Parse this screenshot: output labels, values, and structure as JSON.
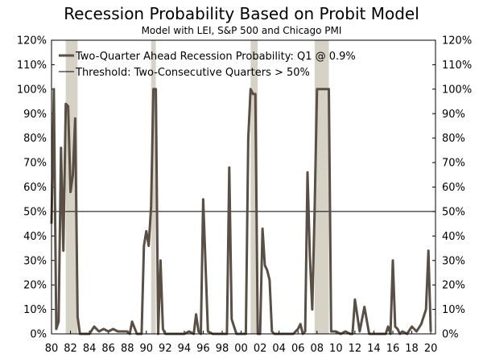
{
  "chart_data": {
    "type": "line",
    "title": "Recession Probability Based on Probit Model",
    "subtitle": "Model with LEI, S&P 500 and Chicago PMI",
    "xlabel": "",
    "ylabel": "",
    "xlim": [
      1980,
      2020.5
    ],
    "ylim": [
      0,
      120
    ],
    "y_ticks": [
      0,
      10,
      20,
      30,
      40,
      50,
      60,
      70,
      80,
      90,
      100,
      110,
      120
    ],
    "y_tick_suffix": "%",
    "x_ticks": [
      1980,
      1982,
      1984,
      1986,
      1988,
      1990,
      1992,
      1994,
      1996,
      1998,
      2000,
      2002,
      2004,
      2006,
      2008,
      2010,
      2012,
      2014,
      2016,
      2018,
      2020
    ],
    "x_tick_labels": [
      "80",
      "82",
      "84",
      "86",
      "88",
      "90",
      "92",
      "94",
      "96",
      "98",
      "00",
      "02",
      "04",
      "06",
      "08",
      "10",
      "12",
      "14",
      "16",
      "18",
      "20"
    ],
    "recession_shading": [
      {
        "start": 1981.5,
        "end": 1982.75
      },
      {
        "start": 1990.5,
        "end": 1991.0
      },
      {
        "start": 2001.0,
        "end": 2001.75
      },
      {
        "start": 2007.75,
        "end": 2009.25
      }
    ],
    "threshold": {
      "name": "Threshold: Two-Consecutive Quarters > 50%",
      "value": 50
    },
    "series": [
      {
        "name": "Two-Quarter Ahead Recession Probability: Q1 @ 0.9%",
        "x": [
          1980.0,
          1980.25,
          1980.5,
          1980.75,
          1981.0,
          1981.25,
          1981.5,
          1981.75,
          1982.0,
          1982.25,
          1982.5,
          1982.75,
          1983.0,
          1983.5,
          1984.0,
          1984.5,
          1985.0,
          1985.5,
          1986.0,
          1986.5,
          1987.0,
          1987.5,
          1988.0,
          1988.25,
          1988.5,
          1989.0,
          1989.25,
          1989.5,
          1989.75,
          1990.0,
          1990.25,
          1990.5,
          1990.75,
          1991.0,
          1991.25,
          1991.5,
          1991.75,
          1992.0,
          1992.5,
          1993.0,
          1993.5,
          1994.0,
          1994.5,
          1995.0,
          1995.25,
          1995.5,
          1995.75,
          1996.0,
          1996.5,
          1997.0,
          1997.5,
          1998.0,
          1998.25,
          1998.5,
          1998.75,
          1999.0,
          1999.5,
          2000.0,
          2000.25,
          2000.5,
          2000.75,
          2001.0,
          2001.25,
          2001.5,
          2001.75,
          2002.0,
          2002.25,
          2002.5,
          2002.75,
          2003.0,
          2003.25,
          2003.5,
          2004.0,
          2004.5,
          2005.0,
          2005.5,
          2006.0,
          2006.25,
          2006.5,
          2006.75,
          2007.0,
          2007.25,
          2007.5,
          2007.75,
          2008.0,
          2008.5,
          2009.0,
          2009.25,
          2009.5,
          2010.0,
          2010.5,
          2011.0,
          2011.5,
          2011.75,
          2012.0,
          2012.5,
          2013.0,
          2013.5,
          2014.0,
          2014.25,
          2014.5,
          2015.0,
          2015.25,
          2015.5,
          2015.75,
          2016.0,
          2016.25,
          2016.5,
          2016.75,
          2017.0,
          2017.5,
          2018.0,
          2018.5,
          2019.0,
          2019.5,
          2019.75,
          2020.0
        ],
        "values": [
          45,
          100,
          2,
          5,
          76,
          34,
          94,
          93,
          58,
          65,
          88,
          7,
          0,
          0,
          0,
          3,
          1,
          2,
          1,
          2,
          1,
          1,
          1,
          0,
          5,
          0,
          0,
          0,
          36,
          42,
          36,
          52,
          100,
          100,
          0,
          30,
          2,
          0,
          0,
          0,
          0,
          0,
          1,
          0,
          8,
          1,
          0,
          55,
          1,
          0,
          0,
          0,
          0,
          0,
          68,
          6,
          0,
          0,
          0,
          0,
          80,
          100,
          98,
          98,
          0,
          0,
          43,
          28,
          26,
          22,
          1,
          0,
          0,
          0,
          0,
          0,
          2,
          4,
          0,
          1,
          66,
          32,
          10,
          50,
          100,
          100,
          100,
          100,
          1,
          1,
          0,
          1,
          0,
          0,
          14,
          1,
          11,
          0,
          0,
          0,
          0,
          0,
          0,
          3,
          0,
          30,
          3,
          2,
          0,
          1,
          0,
          3,
          1,
          4,
          10,
          34,
          0.9
        ]
      }
    ]
  }
}
